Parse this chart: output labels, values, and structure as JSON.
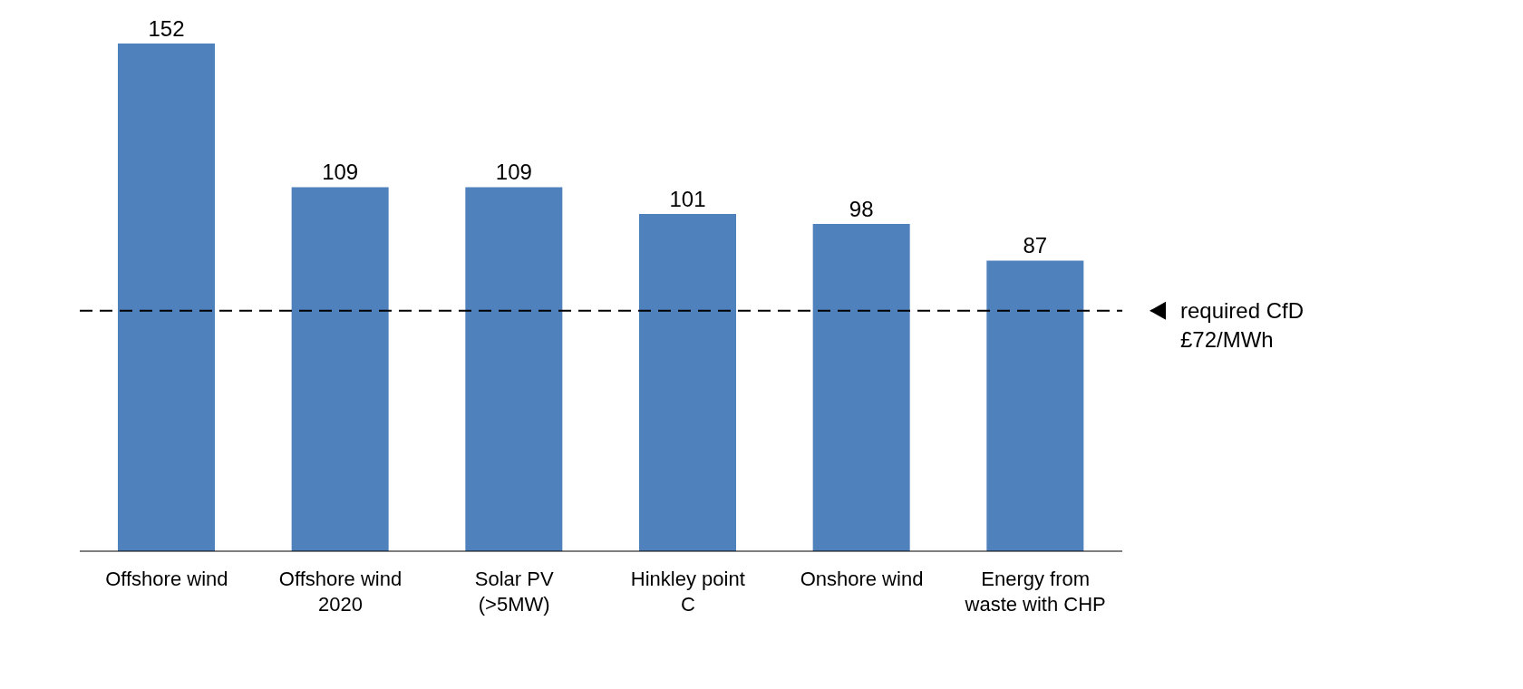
{
  "chart_data": {
    "type": "bar",
    "categories": [
      "Offshore wind",
      "Offshore wind 2020",
      "Solar PV (>5MW)",
      "Hinkley point C",
      "Onshore wind",
      "Energy from waste with CHP"
    ],
    "values": [
      152,
      109,
      109,
      101,
      98,
      87
    ],
    "color": "#4f81bd",
    "data_labels": true,
    "grid": false,
    "legend": false,
    "ref_lines": [
      {
        "axis": "y",
        "value": 72,
        "label": "required CfD £72/MWh",
        "line_style": "dashed",
        "color": "#000000"
      }
    ]
  }
}
